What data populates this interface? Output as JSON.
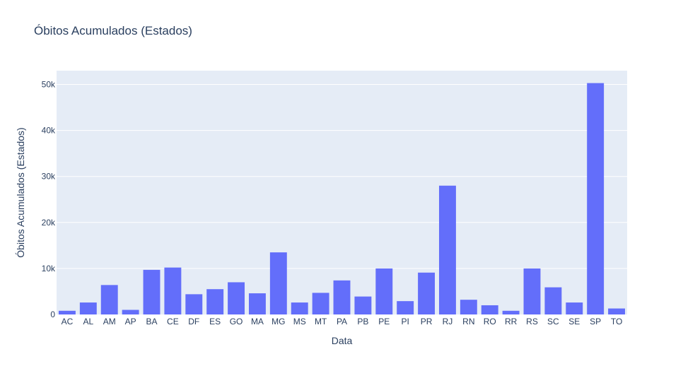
{
  "colors": {
    "bar": "#636efa",
    "plot_bg": "#e5ecf6",
    "grid": "#ffffff",
    "text": "#2a3f5f"
  },
  "chart_data": {
    "type": "bar",
    "title": "Óbitos Acumulados (Estados)",
    "xlabel": "Data",
    "ylabel": "Óbitos Acumulados (Estados)",
    "ylim": [
      0,
      53000
    ],
    "yticks": [
      0,
      10000,
      20000,
      30000,
      40000,
      50000
    ],
    "ytick_labels": [
      "0",
      "10k",
      "20k",
      "30k",
      "40k",
      "50k"
    ],
    "grid": true,
    "categories": [
      "AC",
      "AL",
      "AM",
      "AP",
      "BA",
      "CE",
      "DF",
      "ES",
      "GO",
      "MA",
      "MG",
      "MS",
      "MT",
      "PA",
      "PB",
      "PE",
      "PI",
      "PR",
      "RJ",
      "RN",
      "RO",
      "RR",
      "RS",
      "SC",
      "SE",
      "SP",
      "TO"
    ],
    "values": [
      800,
      2600,
      6400,
      1000,
      9700,
      10200,
      4400,
      5500,
      7000,
      4600,
      13500,
      2600,
      4700,
      7400,
      3900,
      10000,
      2900,
      9100,
      28000,
      3200,
      2000,
      800,
      10000,
      5900,
      2600,
      50300,
      1300
    ]
  }
}
